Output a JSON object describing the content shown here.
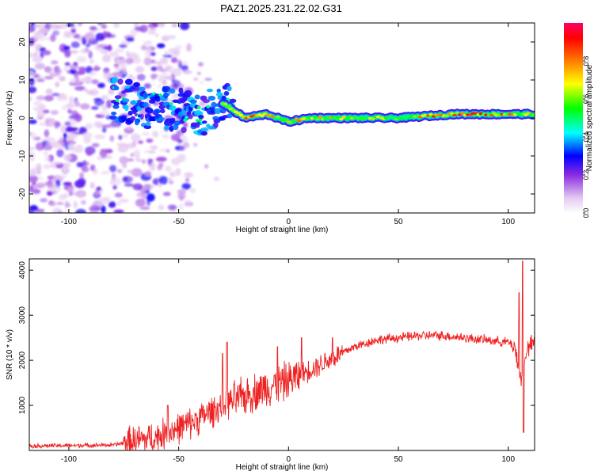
{
  "title": "PAZ1.2025.231.22.02.G31",
  "colors": {
    "snr_line": "#ee2222",
    "track_core": "#ff1a1a",
    "frame": "#000000"
  },
  "chart_data": [
    {
      "type": "heatmap",
      "name": "spectrogram",
      "xlabel": "Height of straight line (km)",
      "ylabel": "Frequency (Hz)",
      "xlim": [
        -118,
        112
      ],
      "ylim": [
        -25,
        25
      ],
      "x_ticks": [
        -100,
        -50,
        0,
        50,
        100
      ],
      "y_ticks": [
        -20,
        -10,
        0,
        10,
        20
      ],
      "colorbar": {
        "label": "Normalized spectral amplitude",
        "range": [
          0,
          1
        ],
        "ticks": [
          "0.0",
          "0.2",
          "0.4",
          "0.6",
          "0.8"
        ],
        "colormap": [
          "#e4c8f0",
          "#8a2be2",
          "#0000ff",
          "#00ffff",
          "#00ff00",
          "#ffff00",
          "#ff0000",
          "#ff0066"
        ]
      },
      "track": {
        "description_points": [
          {
            "x": -78,
            "f": 5,
            "amp": 0.35
          },
          {
            "x": -65,
            "f": 3,
            "amp": 0.38
          },
          {
            "x": -50,
            "f": 2,
            "amp": 0.4
          },
          {
            "x": -40,
            "f": 1,
            "amp": 0.42
          },
          {
            "x": -30,
            "f": 4,
            "amp": 0.55
          },
          {
            "x": -20,
            "f": 0,
            "amp": 0.85
          },
          {
            "x": -10,
            "f": 1,
            "amp": 0.7
          },
          {
            "x": 0,
            "f": -1,
            "amp": 0.7
          },
          {
            "x": 10,
            "f": 0,
            "amp": 0.75
          },
          {
            "x": 30,
            "f": 0,
            "amp": 0.6
          },
          {
            "x": 50,
            "f": 0,
            "amp": 0.6
          },
          {
            "x": 75,
            "f": 1,
            "amp": 0.9
          },
          {
            "x": 95,
            "f": 1,
            "amp": 0.8
          },
          {
            "x": 110,
            "f": 1,
            "amp": 0.7
          }
        ],
        "noise_region_x": [
          -118,
          -75
        ],
        "noise_f_range": [
          -25,
          25
        ]
      }
    },
    {
      "type": "line",
      "name": "snr",
      "xlabel": "Height of straight line (km)",
      "ylabel": "SNR (10 * v/v)",
      "xlim": [
        -118,
        112
      ],
      "ylim": [
        0,
        4250
      ],
      "x_ticks": [
        -100,
        -50,
        0,
        50,
        100
      ],
      "y_ticks": [
        1000,
        2000,
        3000,
        4000
      ],
      "trend": {
        "x": [
          -118,
          -80,
          -60,
          -45,
          -30,
          -20,
          -10,
          0,
          10,
          20,
          30,
          40,
          50,
          60,
          70,
          80,
          90,
          100,
          103,
          106,
          108,
          112
        ],
        "y": [
          100,
          120,
          300,
          600,
          1000,
          1200,
          1400,
          1550,
          1800,
          2050,
          2300,
          2450,
          2500,
          2550,
          2550,
          2500,
          2450,
          2400,
          2300,
          1500,
          2200,
          2400
        ]
      },
      "spikes": [
        {
          "x": -55,
          "y": 1000
        },
        {
          "x": -30,
          "y": 2150
        },
        {
          "x": -28,
          "y": 2400
        },
        {
          "x": -5,
          "y": 2300
        },
        {
          "x": 6,
          "y": 2500
        },
        {
          "x": 20,
          "y": 2500
        },
        {
          "x": 105,
          "y": 3500
        },
        {
          "x": 106.5,
          "y": 4200
        },
        {
          "x": 107,
          "y": 400
        }
      ]
    }
  ]
}
